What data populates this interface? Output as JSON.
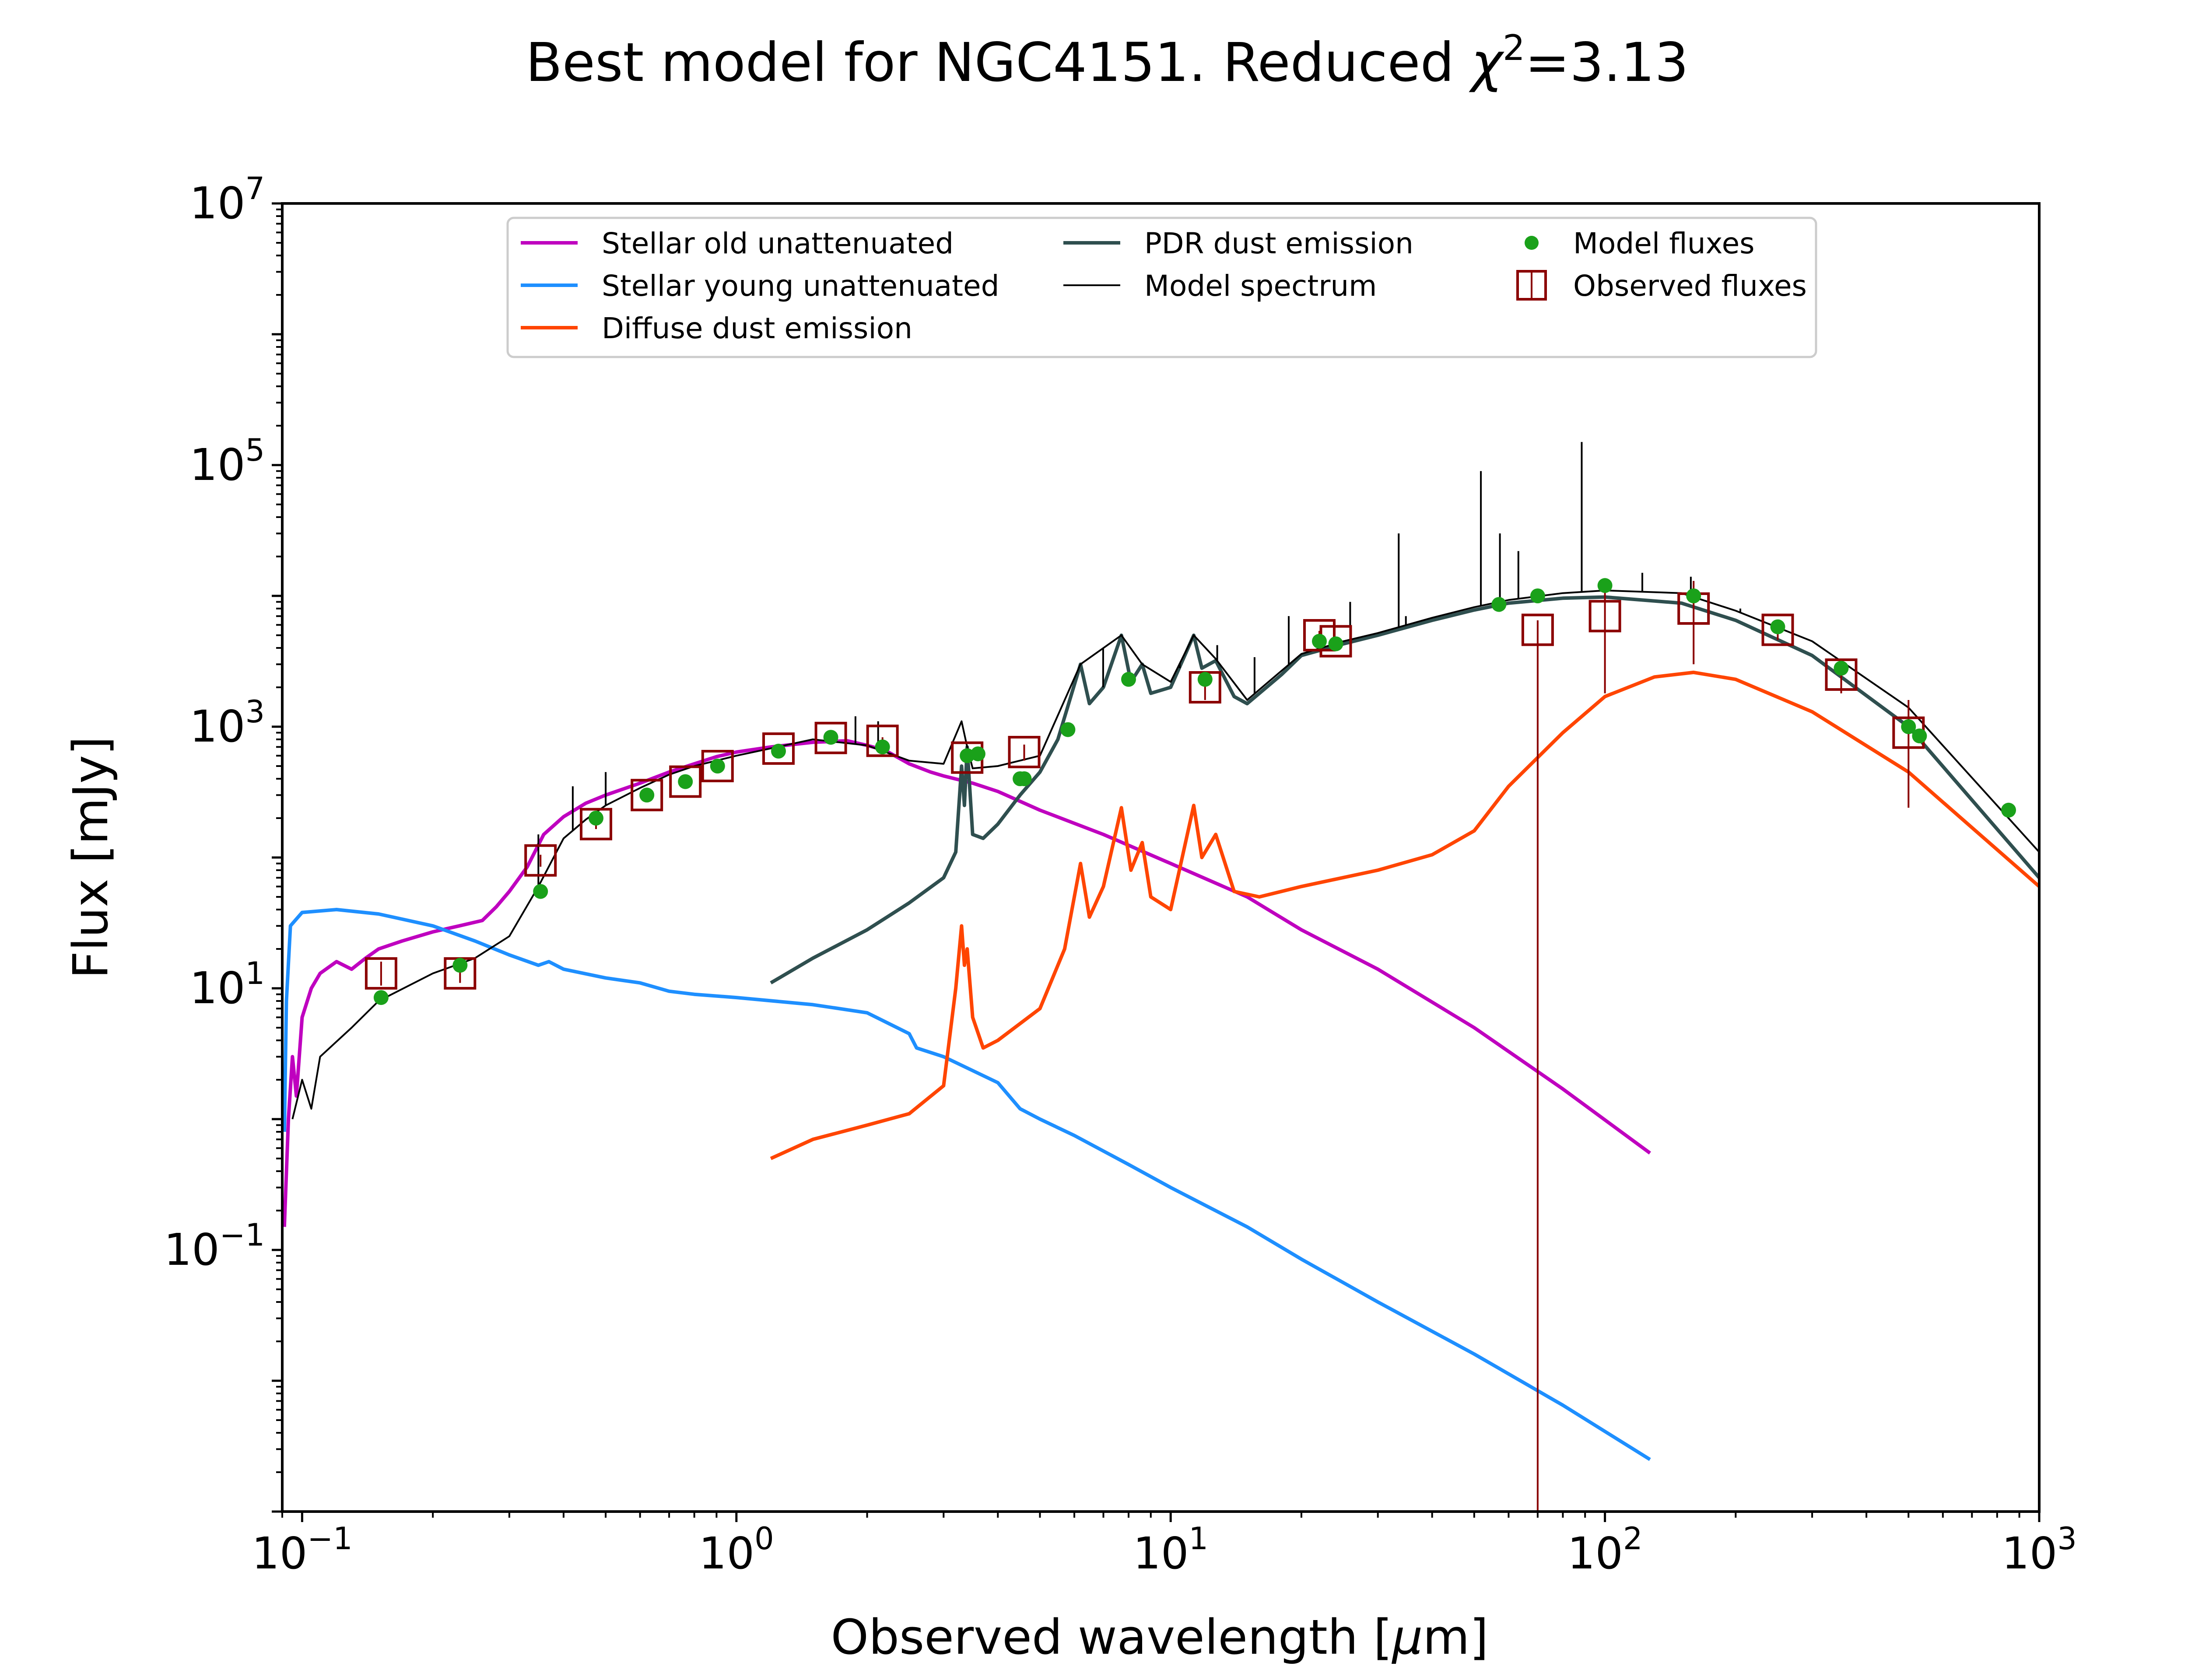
{
  "chart_data": {
    "type": "line",
    "title_main": "Best model for NGC4151. Reduced ",
    "title_chi": "χ",
    "title_chi_power": "2",
    "title_value": "=3.13",
    "xlabel_main": "Observed wavelength [",
    "xlabel_mu": "μ",
    "xlabel_tail": "m]",
    "ylabel": "Flux [mJy]",
    "x_scale": "log",
    "y_scale": "log",
    "xlim": [
      0.09,
      1000
    ],
    "ylim": [
      0.001,
      10000000
    ],
    "x_ticks": [
      {
        "value": 0.1,
        "base": "10",
        "exp": "−1"
      },
      {
        "value": 1,
        "base": "10",
        "exp": "0"
      },
      {
        "value": 10,
        "base": "10",
        "exp": "1"
      },
      {
        "value": 100,
        "base": "10",
        "exp": "2"
      },
      {
        "value": 1000,
        "base": "10",
        "exp": "3"
      }
    ],
    "y_ticks": [
      {
        "value": 0.1,
        "base": "10",
        "exp": "−1"
      },
      {
        "value": 10,
        "base": "10",
        "exp": "1"
      },
      {
        "value": 1000,
        "base": "10",
        "exp": "3"
      },
      {
        "value": 100000,
        "base": "10",
        "exp": "5"
      },
      {
        "value": 10000000,
        "base": "10",
        "exp": "7"
      }
    ],
    "grid": false,
    "legend_position": "top-center",
    "legend": [
      {
        "key": "old",
        "label": "Stellar old unattenuated"
      },
      {
        "key": "young",
        "label": "Stellar young unattenuated"
      },
      {
        "key": "diffuse",
        "label": "Diffuse dust emission"
      },
      {
        "key": "pdr",
        "label": "PDR dust emission"
      },
      {
        "key": "model",
        "label": "Model spectrum"
      },
      {
        "key": "model_fluxes",
        "label": "Model fluxes"
      },
      {
        "key": "observed",
        "label": "Observed fluxes"
      }
    ],
    "colors": {
      "old": "#bf00bf",
      "young": "#1e8fff",
      "diffuse": "#ff4500",
      "pdr": "#2f4f4f",
      "model": "#000000",
      "model_fluxes": "#1aa11a",
      "observed": "#8b0000"
    },
    "series": [
      {
        "key": "old",
        "points": [
          [
            0.091,
            0.15
          ],
          [
            0.093,
            1
          ],
          [
            0.095,
            3
          ],
          [
            0.097,
            1.5
          ],
          [
            0.1,
            6
          ],
          [
            0.105,
            10
          ],
          [
            0.11,
            13
          ],
          [
            0.12,
            16
          ],
          [
            0.13,
            14
          ],
          [
            0.14,
            17
          ],
          [
            0.15,
            20
          ],
          [
            0.17,
            23
          ],
          [
            0.2,
            27
          ],
          [
            0.23,
            30
          ],
          [
            0.26,
            33
          ],
          [
            0.28,
            42
          ],
          [
            0.3,
            55
          ],
          [
            0.33,
            85
          ],
          [
            0.36,
            150
          ],
          [
            0.4,
            205
          ],
          [
            0.45,
            260
          ],
          [
            0.5,
            300
          ],
          [
            0.6,
            370
          ],
          [
            0.7,
            450
          ],
          [
            0.8,
            520
          ],
          [
            0.9,
            590
          ],
          [
            1.0,
            640
          ],
          [
            1.2,
            700
          ],
          [
            1.5,
            760
          ],
          [
            1.8,
            780
          ],
          [
            2.0,
            720
          ],
          [
            2.2,
            660
          ],
          [
            2.5,
            520
          ],
          [
            2.8,
            450
          ],
          [
            3.0,
            420
          ],
          [
            3.5,
            370
          ],
          [
            4.0,
            320
          ],
          [
            5.0,
            230
          ],
          [
            7.0,
            150
          ],
          [
            10.0,
            90
          ],
          [
            15.0,
            50
          ],
          [
            20.0,
            28
          ],
          [
            30.0,
            14
          ],
          [
            50.0,
            5
          ],
          [
            80.0,
            1.7
          ],
          [
            127.0,
            0.55
          ]
        ]
      },
      {
        "key": "young",
        "points": [
          [
            0.091,
            0.8
          ],
          [
            0.092,
            8
          ],
          [
            0.094,
            30
          ],
          [
            0.1,
            38
          ],
          [
            0.12,
            40
          ],
          [
            0.15,
            37
          ],
          [
            0.2,
            30
          ],
          [
            0.25,
            23
          ],
          [
            0.3,
            18
          ],
          [
            0.35,
            15
          ],
          [
            0.37,
            16
          ],
          [
            0.4,
            14
          ],
          [
            0.5,
            12
          ],
          [
            0.6,
            11
          ],
          [
            0.7,
            9.5
          ],
          [
            0.8,
            9
          ],
          [
            1.0,
            8.5
          ],
          [
            1.5,
            7.5
          ],
          [
            2.0,
            6.5
          ],
          [
            2.5,
            4.5
          ],
          [
            2.6,
            3.5
          ],
          [
            3.0,
            3
          ],
          [
            4.0,
            1.9
          ],
          [
            4.5,
            1.2
          ],
          [
            5.0,
            1.0
          ],
          [
            6.0,
            0.75
          ],
          [
            8.0,
            0.45
          ],
          [
            10.0,
            0.3
          ],
          [
            15.0,
            0.15
          ],
          [
            20.0,
            0.085
          ],
          [
            30.0,
            0.04
          ],
          [
            50.0,
            0.016
          ],
          [
            80.0,
            0.0065
          ],
          [
            127.0,
            0.0025
          ]
        ]
      },
      {
        "key": "diffuse",
        "points": [
          [
            1.2,
            0.5
          ],
          [
            1.5,
            0.7
          ],
          [
            2.0,
            0.9
          ],
          [
            2.5,
            1.1
          ],
          [
            3.0,
            1.8
          ],
          [
            3.2,
            10
          ],
          [
            3.3,
            30
          ],
          [
            3.35,
            15
          ],
          [
            3.4,
            20
          ],
          [
            3.5,
            6
          ],
          [
            3.7,
            3.5
          ],
          [
            4.0,
            4
          ],
          [
            5.0,
            7
          ],
          [
            5.7,
            20
          ],
          [
            6.2,
            90
          ],
          [
            6.5,
            35
          ],
          [
            7.0,
            60
          ],
          [
            7.7,
            240
          ],
          [
            8.1,
            80
          ],
          [
            8.6,
            130
          ],
          [
            9.0,
            50
          ],
          [
            10.0,
            40
          ],
          [
            11.3,
            250
          ],
          [
            11.8,
            100
          ],
          [
            12.7,
            150
          ],
          [
            14.0,
            55
          ],
          [
            16.0,
            50
          ],
          [
            20.0,
            60
          ],
          [
            30.0,
            80
          ],
          [
            40.0,
            105
          ],
          [
            50.0,
            160
          ],
          [
            60.0,
            350
          ],
          [
            80.0,
            900
          ],
          [
            100.0,
            1700
          ],
          [
            130.0,
            2400
          ],
          [
            160.0,
            2600
          ],
          [
            200.0,
            2300
          ],
          [
            300.0,
            1300
          ],
          [
            500.0,
            450
          ],
          [
            1000.0,
            60
          ]
        ]
      },
      {
        "key": "pdr",
        "points": [
          [
            1.2,
            11
          ],
          [
            1.5,
            17
          ],
          [
            2.0,
            28
          ],
          [
            2.5,
            45
          ],
          [
            3.0,
            70
          ],
          [
            3.2,
            110
          ],
          [
            3.3,
            500
          ],
          [
            3.35,
            250
          ],
          [
            3.4,
            700
          ],
          [
            3.5,
            150
          ],
          [
            3.7,
            140
          ],
          [
            4.0,
            180
          ],
          [
            4.5,
            300
          ],
          [
            5.0,
            450
          ],
          [
            5.5,
            800
          ],
          [
            6.2,
            3000
          ],
          [
            6.5,
            1500
          ],
          [
            7.0,
            2000
          ],
          [
            7.7,
            5000
          ],
          [
            8.1,
            2200
          ],
          [
            8.6,
            3000
          ],
          [
            9.0,
            1800
          ],
          [
            10.0,
            2000
          ],
          [
            11.3,
            5000
          ],
          [
            11.8,
            2800
          ],
          [
            12.7,
            3200
          ],
          [
            14.0,
            1700
          ],
          [
            15.0,
            1500
          ],
          [
            18.0,
            2500
          ],
          [
            20.0,
            3500
          ],
          [
            25.0,
            4300
          ],
          [
            30.0,
            5000
          ],
          [
            40.0,
            6500
          ],
          [
            50.0,
            7800
          ],
          [
            60.0,
            8800
          ],
          [
            80.0,
            9600
          ],
          [
            100.0,
            9800
          ],
          [
            150.0,
            8800
          ],
          [
            200.0,
            6500
          ],
          [
            300.0,
            3500
          ],
          [
            500.0,
            1000
          ],
          [
            1000.0,
            70
          ]
        ]
      },
      {
        "key": "model",
        "points": [
          [
            0.095,
            1
          ],
          [
            0.1,
            2
          ],
          [
            0.105,
            1.2
          ],
          [
            0.11,
            3
          ],
          [
            0.13,
            5
          ],
          [
            0.15,
            8
          ],
          [
            0.2,
            13
          ],
          [
            0.25,
            17
          ],
          [
            0.3,
            25
          ],
          [
            0.35,
            60
          ],
          [
            0.4,
            140
          ],
          [
            0.45,
            195
          ],
          [
            0.5,
            250
          ],
          [
            0.6,
            340
          ],
          [
            0.7,
            430
          ],
          [
            0.8,
            500
          ],
          [
            1.0,
            600
          ],
          [
            1.5,
            800
          ],
          [
            2.0,
            720
          ],
          [
            2.5,
            550
          ],
          [
            3.0,
            520
          ],
          [
            3.3,
            1100
          ],
          [
            3.4,
            700
          ],
          [
            3.5,
            480
          ],
          [
            4.0,
            500
          ],
          [
            5.0,
            600
          ],
          [
            6.2,
            3000
          ],
          [
            7.7,
            5000
          ],
          [
            8.6,
            3000
          ],
          [
            10.0,
            2200
          ],
          [
            11.3,
            5000
          ],
          [
            12.7,
            3300
          ],
          [
            15.0,
            1600
          ],
          [
            20.0,
            3600
          ],
          [
            25.0,
            4500
          ],
          [
            30.0,
            5200
          ],
          [
            40.0,
            6800
          ],
          [
            50.0,
            8200
          ],
          [
            60.0,
            9300
          ],
          [
            80.0,
            10500
          ],
          [
            100.0,
            11000
          ],
          [
            150.0,
            10500
          ],
          [
            200.0,
            7700
          ],
          [
            300.0,
            4500
          ],
          [
            500.0,
            1400
          ],
          [
            1000.0,
            110
          ]
        ]
      }
    ],
    "emission_lines": [
      [
        0.35,
        150
      ],
      [
        0.42,
        350
      ],
      [
        0.5,
        450
      ],
      [
        1.28,
        700
      ],
      [
        1.88,
        1200
      ],
      [
        2.12,
        1100
      ],
      [
        6.99,
        2000
      ],
      [
        10.5,
        2800
      ],
      [
        12.8,
        4200
      ],
      [
        15.6,
        3400
      ],
      [
        18.7,
        7000
      ],
      [
        25.9,
        9000
      ],
      [
        33.5,
        30000
      ],
      [
        34.8,
        7000
      ],
      [
        51.8,
        90000
      ],
      [
        57.3,
        30000
      ],
      [
        63.2,
        22000
      ],
      [
        88.4,
        150000
      ],
      [
        121.9,
        15000
      ],
      [
        157.7,
        14000
      ],
      [
        205.0,
        8000
      ]
    ],
    "model_fluxes": [
      [
        0.152,
        8.5
      ],
      [
        0.231,
        15
      ],
      [
        0.354,
        55
      ],
      [
        0.475,
        200
      ],
      [
        0.622,
        300
      ],
      [
        0.763,
        380
      ],
      [
        0.905,
        500
      ],
      [
        1.25,
        650
      ],
      [
        1.65,
        830
      ],
      [
        2.17,
        700
      ],
      [
        3.4,
        600
      ],
      [
        3.6,
        620
      ],
      [
        4.5,
        400
      ],
      [
        4.6,
        400
      ],
      [
        5.8,
        950
      ],
      [
        8.0,
        2300
      ],
      [
        12.0,
        2300
      ],
      [
        22.0,
        4500
      ],
      [
        24.0,
        4300
      ],
      [
        57.0,
        8600
      ],
      [
        70.0,
        10000
      ],
      [
        100.0,
        12000
      ],
      [
        160.0,
        10000
      ],
      [
        250.0,
        5800
      ],
      [
        350.0,
        2800
      ],
      [
        500.0,
        1000
      ],
      [
        530.0,
        850
      ],
      [
        850.0,
        230
      ]
    ],
    "observed": [
      {
        "x": 0.152,
        "y": 13,
        "lo": 10.5,
        "hi": 16
      },
      {
        "x": 0.231,
        "y": 13,
        "lo": 11,
        "hi": 15
      },
      {
        "x": 0.354,
        "y": 95,
        "lo": 85,
        "hi": 105
      },
      {
        "x": 0.475,
        "y": 180,
        "lo": 165,
        "hi": 195
      },
      {
        "x": 0.622,
        "y": 300,
        "lo": 280,
        "hi": 320
      },
      {
        "x": 0.763,
        "y": 380,
        "lo": 355,
        "hi": 405
      },
      {
        "x": 0.905,
        "y": 500,
        "lo": 470,
        "hi": 530
      },
      {
        "x": 1.25,
        "y": 680,
        "lo": 640,
        "hi": 720
      },
      {
        "x": 1.65,
        "y": 820,
        "lo": 770,
        "hi": 870
      },
      {
        "x": 2.17,
        "y": 780,
        "lo": 730,
        "hi": 830
      },
      {
        "x": 3.4,
        "y": 580,
        "lo": 540,
        "hi": 620
      },
      {
        "x": 4.6,
        "y": 640,
        "lo": 550,
        "hi": 730
      },
      {
        "x": 12.0,
        "y": 2000,
        "lo": 1600,
        "hi": 2400
      },
      {
        "x": 22.0,
        "y": 5000,
        "lo": 4600,
        "hi": 5400
      },
      {
        "x": 24.0,
        "y": 4500,
        "lo": 4200,
        "hi": 4800
      },
      {
        "x": 70.0,
        "y": 5500,
        "lo": 0.001,
        "hi": 6500
      },
      {
        "x": 100.0,
        "y": 7000,
        "lo": 1800,
        "hi": 12000
      },
      {
        "x": 160.0,
        "y": 8000,
        "lo": 3000,
        "hi": 13000
      },
      {
        "x": 250.0,
        "y": 5500,
        "lo": 4600,
        "hi": 6400
      },
      {
        "x": 350.0,
        "y": 2500,
        "lo": 1800,
        "hi": 3200
      },
      {
        "x": 500.0,
        "y": 900,
        "lo": 240,
        "hi": 1600
      }
    ]
  }
}
